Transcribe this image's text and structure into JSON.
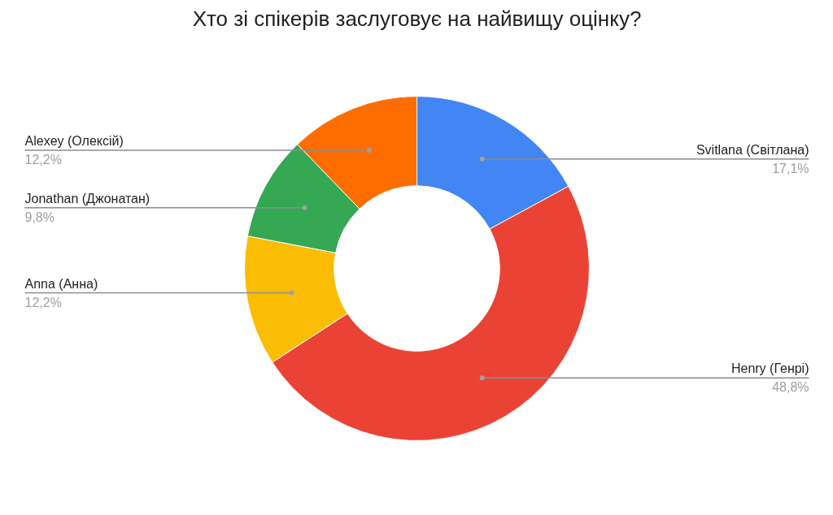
{
  "chart_data": {
    "type": "donut",
    "title": "Хто зі спікерів заслуговує на найвищу оцінку?",
    "categories": [
      "Svitlana (Світлана)",
      "Henry (Генрі)",
      "Anna (Анна)",
      "Jonathan (Джонатан)",
      "Alexey (Олексій)"
    ],
    "values": [
      17.1,
      48.8,
      12.2,
      9.8,
      12.2
    ],
    "colors": [
      "#4285f4",
      "#ea4335",
      "#fbbc04",
      "#34a853",
      "#ff6d01"
    ],
    "value_labels": [
      "17,1%",
      "48,8%",
      "12,2%",
      "9,8%",
      "12,2%"
    ]
  }
}
